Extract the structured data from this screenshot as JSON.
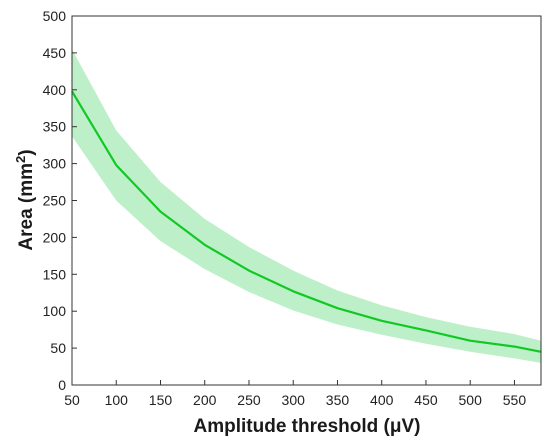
{
  "colors": {
    "line": "#12c825",
    "band": "#bdf0c8",
    "axis": "#333333"
  },
  "chart_data": {
    "type": "line",
    "title": "",
    "xlabel": "Amplitude threshold (μV)",
    "ylabel_main": "Area (mm",
    "ylabel_sup": "2",
    "ylabel_close": ")",
    "xlim": [
      50,
      580
    ],
    "ylim": [
      0,
      500
    ],
    "xticks": [
      50,
      100,
      150,
      200,
      250,
      300,
      350,
      400,
      450,
      500,
      550
    ],
    "yticks": [
      0,
      50,
      100,
      150,
      200,
      250,
      300,
      350,
      400,
      450,
      500
    ],
    "grid": false,
    "legend": "none",
    "series": [
      {
        "x": [
          50,
          100,
          150,
          200,
          250,
          300,
          350,
          400,
          450,
          500,
          550,
          580
        ],
        "y": [
          398,
          298,
          235,
          190,
          155,
          127,
          104,
          87,
          74,
          60,
          52,
          45
        ],
        "upper": [
          455,
          345,
          275,
          225,
          187,
          155,
          128,
          108,
          92,
          79,
          69,
          60
        ],
        "lower": [
          337,
          250,
          195,
          157,
          126,
          101,
          82,
          68,
          56,
          45,
          36,
          30
        ]
      }
    ]
  }
}
